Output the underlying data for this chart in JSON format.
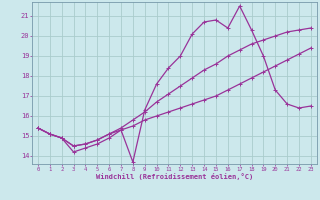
{
  "xlabel": "Windchill (Refroidissement éolien,°C)",
  "bg_color": "#cce8ec",
  "grid_color": "#aacccc",
  "line_color": "#993399",
  "spine_color": "#7799aa",
  "xlim": [
    -0.5,
    23.5
  ],
  "ylim": [
    13.6,
    21.7
  ],
  "xticks": [
    0,
    1,
    2,
    3,
    4,
    5,
    6,
    7,
    8,
    9,
    10,
    11,
    12,
    13,
    14,
    15,
    16,
    17,
    18,
    19,
    20,
    21,
    22,
    23
  ],
  "yticks": [
    14,
    15,
    16,
    17,
    18,
    19,
    20,
    21
  ],
  "line1_x": [
    0,
    1,
    2,
    3,
    4,
    5,
    6,
    7,
    8,
    9,
    10,
    11,
    12,
    13,
    14,
    15,
    16,
    17,
    18,
    19,
    20,
    21,
    22,
    23
  ],
  "line1_y": [
    15.4,
    15.1,
    14.9,
    14.2,
    14.4,
    14.6,
    14.9,
    15.3,
    13.7,
    16.3,
    17.6,
    18.4,
    19.0,
    20.1,
    20.7,
    20.8,
    20.4,
    21.5,
    20.3,
    19.0,
    17.3,
    16.6,
    16.4,
    16.5
  ],
  "line2_x": [
    0,
    1,
    2,
    3,
    4,
    5,
    6,
    7,
    8,
    9,
    10,
    11,
    12,
    13,
    14,
    15,
    16,
    17,
    18,
    19,
    20,
    21,
    22,
    23
  ],
  "line2_y": [
    15.4,
    15.1,
    14.9,
    14.5,
    14.6,
    14.8,
    15.1,
    15.4,
    15.8,
    16.2,
    16.7,
    17.1,
    17.5,
    17.9,
    18.3,
    18.6,
    19.0,
    19.3,
    19.6,
    19.8,
    20.0,
    20.2,
    20.3,
    20.4
  ],
  "line3_x": [
    0,
    1,
    2,
    3,
    4,
    5,
    6,
    7,
    8,
    9,
    10,
    11,
    12,
    13,
    14,
    15,
    16,
    17,
    18,
    19,
    20,
    21,
    22,
    23
  ],
  "line3_y": [
    15.4,
    15.1,
    14.9,
    14.5,
    14.6,
    14.8,
    15.1,
    15.3,
    15.5,
    15.8,
    16.0,
    16.2,
    16.4,
    16.6,
    16.8,
    17.0,
    17.3,
    17.6,
    17.9,
    18.2,
    18.5,
    18.8,
    19.1,
    19.4
  ]
}
